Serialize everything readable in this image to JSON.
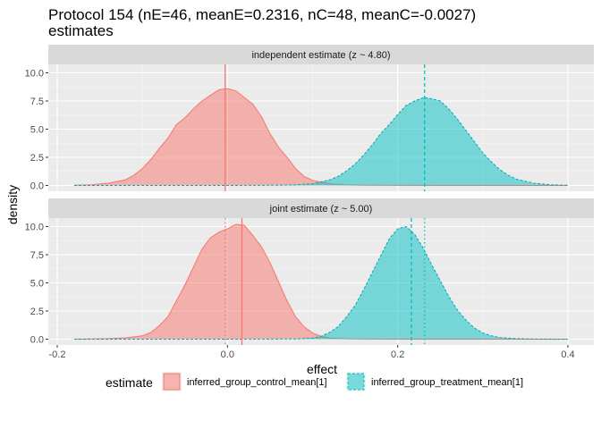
{
  "chart_data": {
    "type": "area",
    "title_lines": [
      "Protocol 154 (nE=46, meanE=0.2316, nC=48, meanC=-0.0027)",
      "estimates"
    ],
    "xlabel": "effect",
    "ylabel": "density",
    "xlim": [
      -0.2,
      0.4
    ],
    "ylim": [
      0,
      10.5
    ],
    "x_ticks": [
      -0.2,
      0.0,
      0.2,
      0.4
    ],
    "x_tick_labels": [
      "-0.2",
      "0.0",
      "0.2",
      "0.4"
    ],
    "y_ticks": [
      0,
      2.5,
      5.0,
      7.5,
      10.0
    ],
    "y_tick_labels": [
      "0.0",
      "2.5",
      "5.0",
      "7.5",
      "10.0"
    ],
    "grid": true,
    "legend": {
      "title": "estimate",
      "position": "bottom",
      "entries": [
        {
          "label": "inferred_group_control_mean[1]",
          "fill": "#f8766d",
          "line": "solid"
        },
        {
          "label": "inferred_group_treatment_mean[1]",
          "fill": "#00bfc4",
          "line": "dashed"
        }
      ]
    },
    "colors": {
      "control_fill": "#f8766d",
      "control_line": "#f8766d",
      "treatment_fill": "#00bfc4",
      "treatment_line": "#00a9b0",
      "panel_bg": "#ebebeb",
      "strip_bg": "#d9d9d9",
      "grid": "#ffffff"
    },
    "panels": [
      {
        "strip": "independent estimate (z ~  4.80)",
        "vlines": [
          {
            "x": -0.0027,
            "color": "#f8766d",
            "dash": "solid"
          },
          {
            "x": 0.2316,
            "color": "#00bfc4",
            "dash": "dashed"
          }
        ],
        "series": [
          {
            "name": "inferred_group_control_mean[1]",
            "x": [
              -0.18,
              -0.16,
              -0.14,
              -0.12,
              -0.11,
              -0.1,
              -0.09,
              -0.08,
              -0.07,
              -0.06,
              -0.05,
              -0.04,
              -0.03,
              -0.02,
              -0.01,
              0.0,
              0.01,
              0.02,
              0.03,
              0.04,
              0.05,
              0.06,
              0.07,
              0.08,
              0.09,
              0.1,
              0.12,
              0.14,
              0.16,
              0.2,
              0.3,
              0.4
            ],
            "y": [
              0.02,
              0.06,
              0.2,
              0.5,
              0.9,
              1.5,
              2.3,
              3.3,
              4.2,
              5.4,
              6.0,
              6.8,
              7.5,
              8.0,
              8.5,
              8.6,
              8.4,
              7.8,
              7.2,
              6.1,
              4.6,
              3.4,
              2.5,
              1.5,
              0.8,
              0.45,
              0.15,
              0.05,
              0.02,
              0.01,
              0.0,
              0.0
            ]
          },
          {
            "name": "inferred_group_treatment_mean[1]",
            "x": [
              -0.18,
              0.0,
              0.06,
              0.08,
              0.1,
              0.12,
              0.13,
              0.14,
              0.15,
              0.16,
              0.17,
              0.18,
              0.19,
              0.2,
              0.21,
              0.22,
              0.23,
              0.24,
              0.25,
              0.26,
              0.27,
              0.28,
              0.29,
              0.3,
              0.31,
              0.32,
              0.33,
              0.34,
              0.36,
              0.38,
              0.4
            ],
            "y": [
              0.0,
              0.0,
              0.02,
              0.05,
              0.15,
              0.5,
              0.8,
              1.3,
              1.9,
              2.7,
              3.6,
              4.6,
              5.4,
              6.3,
              7.1,
              7.5,
              7.8,
              7.7,
              7.5,
              6.8,
              5.9,
              4.9,
              3.9,
              2.9,
              2.1,
              1.4,
              0.9,
              0.55,
              0.2,
              0.06,
              0.02
            ]
          }
        ]
      },
      {
        "strip": "joint estimate (z ~  5.00)",
        "vlines": [
          {
            "x": -0.0027,
            "color": "#f8766d",
            "dash": "dotted"
          },
          {
            "x": 0.2316,
            "color": "#00bfc4",
            "dash": "dotted"
          },
          {
            "x": 0.017,
            "color": "#f8766d",
            "dash": "solid"
          },
          {
            "x": 0.216,
            "color": "#00bfc4",
            "dash": "dashed"
          }
        ],
        "series": [
          {
            "name": "inferred_group_control_mean[1]",
            "x": [
              -0.18,
              -0.14,
              -0.12,
              -0.1,
              -0.09,
              -0.08,
              -0.07,
              -0.06,
              -0.05,
              -0.04,
              -0.03,
              -0.02,
              -0.01,
              0.0,
              0.01,
              0.02,
              0.03,
              0.04,
              0.05,
              0.06,
              0.07,
              0.08,
              0.09,
              0.1,
              0.11,
              0.12,
              0.14,
              0.16,
              0.2,
              0.3,
              0.4
            ],
            "y": [
              0.0,
              0.05,
              0.12,
              0.3,
              0.6,
              1.2,
              2.0,
              3.4,
              4.8,
              6.4,
              8.0,
              9.0,
              9.5,
              9.8,
              10.2,
              10.1,
              9.2,
              8.2,
              6.8,
              5.1,
              3.4,
              2.0,
              1.1,
              0.55,
              0.25,
              0.1,
              0.03,
              0.01,
              0.0,
              0.0,
              0.0
            ]
          },
          {
            "name": "inferred_group_treatment_mean[1]",
            "x": [
              -0.18,
              0.0,
              0.08,
              0.1,
              0.11,
              0.12,
              0.13,
              0.14,
              0.15,
              0.16,
              0.17,
              0.18,
              0.19,
              0.2,
              0.21,
              0.22,
              0.23,
              0.24,
              0.25,
              0.26,
              0.27,
              0.28,
              0.29,
              0.3,
              0.31,
              0.32,
              0.34,
              0.36,
              0.4
            ],
            "y": [
              0.0,
              0.0,
              0.02,
              0.1,
              0.25,
              0.6,
              1.1,
              2.0,
              3.0,
              4.4,
              5.9,
              7.4,
              8.9,
              9.8,
              10.0,
              9.3,
              8.1,
              6.6,
              5.2,
              3.8,
              2.6,
              1.7,
              1.0,
              0.55,
              0.3,
              0.15,
              0.05,
              0.01,
              0.0
            ]
          }
        ]
      }
    ]
  }
}
